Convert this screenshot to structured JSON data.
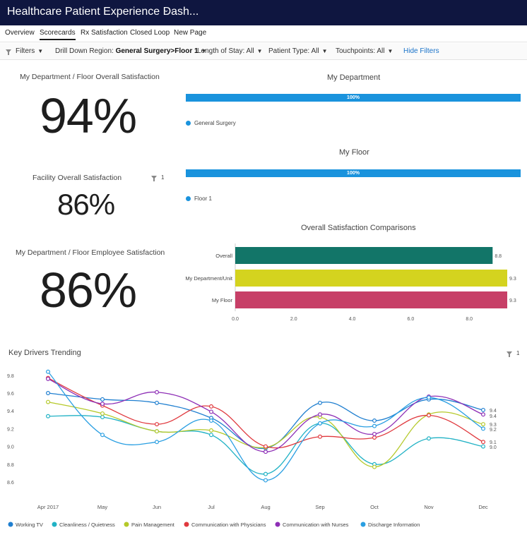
{
  "header": {
    "title": "Healthcare Patient Experience Dash...",
    "caret": "⌄"
  },
  "tabs": [
    "Overview",
    "Scorecards",
    "Rx Satisfaction",
    "Closed Loop",
    "New Page"
  ],
  "filters": {
    "label": "Filters",
    "region_label": "Drill Down Region:",
    "region_value": "General Surgery>Floor 1",
    "stay_label": "Length of Stay:",
    "stay_value": "All",
    "ptype_label": "Patient Type:",
    "ptype_value": "All",
    "touch_label": "Touchpoints:",
    "touch_value": "All",
    "hide": "Hide Filters"
  },
  "kpis": {
    "dept_floor_label": "My Department / Floor Overall Satisfaction",
    "dept_floor_value": "94%",
    "facility_label": "Facility Overall Satisfaction",
    "facility_value": "86%",
    "facility_filter_count": "1",
    "employee_label": "My Department / Floor Employee Satisfaction",
    "employee_value": "86%"
  },
  "my_department": {
    "title": "My Department",
    "bar_label": "100%",
    "bar_value": 100,
    "legend": "General Surgery"
  },
  "my_floor": {
    "title": "My Floor",
    "bar_label": "100%",
    "bar_value": 100,
    "legend": "Floor 1"
  },
  "colors": {
    "brand": "#0f1640",
    "accent": "#1a93dd",
    "link": "#1a73c9"
  },
  "chart_data": [
    {
      "type": "bar",
      "orientation": "horizontal",
      "title": "Overall Satisfaction Comparisons",
      "categories": [
        "Overall",
        "My Department/Unit",
        "My Floor"
      ],
      "values": [
        8.8,
        9.3,
        9.3
      ],
      "value_labels": [
        "8.8",
        "9.3",
        "9.3"
      ],
      "colors": [
        "#127568",
        "#d4d31f",
        "#c73f67"
      ],
      "xlim": [
        0,
        9.3
      ],
      "ticks": [
        "0.0",
        "2.0",
        "4.0",
        "6.0",
        "8.0"
      ],
      "tick_values": [
        0,
        2,
        4,
        6,
        8
      ]
    },
    {
      "type": "line",
      "title": "Key Drivers Trending",
      "filter_count": "1",
      "x": [
        "Apr 2017",
        "May",
        "Jun",
        "Jul",
        "Aug",
        "Sep",
        "Oct",
        "Nov",
        "Dec"
      ],
      "ylim": [
        8.5,
        9.9
      ],
      "y_ticks": [
        "8.6",
        "8.8",
        "9.0",
        "9.2",
        "9.4",
        "9.6",
        "9.8"
      ],
      "y_tick_values": [
        8.6,
        8.8,
        9.0,
        9.2,
        9.4,
        9.6,
        9.8
      ],
      "end_labels": [
        "9.4",
        "9.4",
        "9.3",
        "9.2",
        "9.1",
        "9.0"
      ],
      "series": [
        {
          "name": "Working TV",
          "color": "#1f7fd0",
          "values": [
            9.6,
            9.53,
            9.49,
            9.32,
            8.98,
            9.49,
            9.29,
            9.53,
            9.41
          ]
        },
        {
          "name": "Cleanliness / Quietness",
          "color": "#21b2c5",
          "values": [
            9.34,
            9.33,
            9.17,
            9.13,
            8.69,
            9.26,
            8.8,
            9.09,
            9.0
          ]
        },
        {
          "name": "Pain Management",
          "color": "#b5c92a",
          "values": [
            9.5,
            9.37,
            9.17,
            9.18,
            8.99,
            9.33,
            8.77,
            9.36,
            9.25
          ]
        },
        {
          "name": "Communication with Physicians",
          "color": "#e0393e",
          "values": [
            9.77,
            9.46,
            9.25,
            9.45,
            9.0,
            9.11,
            9.1,
            9.35,
            9.05
          ]
        },
        {
          "name": "Communication with Nurses",
          "color": "#8e2fb6",
          "values": [
            9.76,
            9.48,
            9.61,
            9.39,
            8.94,
            9.36,
            9.14,
            9.56,
            9.36
          ]
        },
        {
          "name": "Discharge Information",
          "color": "#2a9fe2",
          "values": [
            9.84,
            9.13,
            9.05,
            9.29,
            8.62,
            9.26,
            9.23,
            9.55,
            9.2
          ]
        }
      ]
    }
  ]
}
